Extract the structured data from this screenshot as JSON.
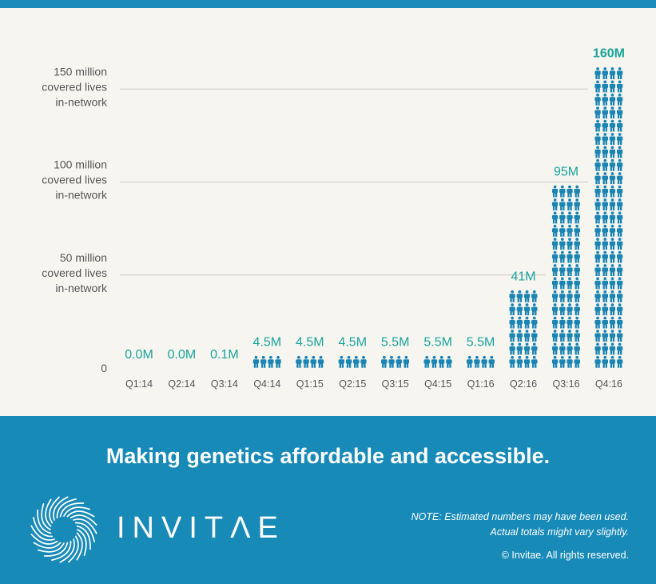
{
  "chart_data": {
    "type": "bar",
    "categories": [
      "Q1:14",
      "Q2:14",
      "Q3:14",
      "Q4:14",
      "Q1:15",
      "Q2:15",
      "Q3:15",
      "Q4:15",
      "Q1:16",
      "Q2:16",
      "Q3:16",
      "Q4:16"
    ],
    "values": [
      0.0,
      0.0,
      0.1,
      4.5,
      4.5,
      4.5,
      5.5,
      5.5,
      5.5,
      41,
      95,
      160
    ],
    "value_labels": [
      "0.0M",
      "0.0M",
      "0.1M",
      "4.5M",
      "4.5M",
      "4.5M",
      "5.5M",
      "5.5M",
      "5.5M",
      "41M",
      "95M",
      "160M"
    ],
    "unit": "million covered lives in-network",
    "ylim": [
      0,
      160
    ],
    "gridlines": [
      {
        "value": 150,
        "label_lines": [
          "150 million",
          "covered lives",
          "in-network"
        ]
      },
      {
        "value": 100,
        "label_lines": [
          "100 million",
          "covered lives",
          "in-network"
        ]
      },
      {
        "value": 50,
        "label_lines": [
          "50 million",
          "covered lives",
          "in-network"
        ]
      }
    ],
    "zero_label": "0",
    "mark_icon": "person-icon",
    "colors": {
      "bar": "#1a84b3",
      "label": "#1aa39b",
      "grid": "#c9c9c9",
      "text": "#555555"
    }
  },
  "footer": {
    "tagline": "Making genetics affordable and accessible.",
    "brand": "INVITΛE",
    "note_line1": "NOTE: Estimated numbers may have been used.",
    "note_line2": "Actual totals might vary slightly.",
    "copyright": "© Invitae. All rights reserved.",
    "logo_icon": "swirl-logo-icon"
  },
  "colors": {
    "top_strip": "#1b8cba",
    "panel": "#f6f5f0",
    "footer": "#188ab8"
  }
}
